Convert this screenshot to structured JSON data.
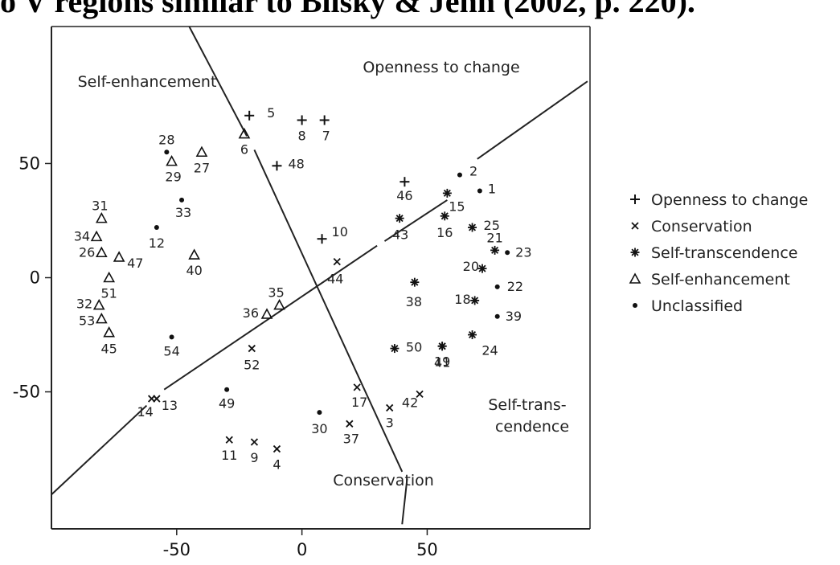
{
  "caption": "o V regions similar to Bilsky & Jehn (2002, p. 220).",
  "chart_data": {
    "type": "scatter",
    "title": "",
    "xlabel": "",
    "ylabel": "",
    "xlim": [
      -100,
      115
    ],
    "ylim": [
      -110,
      110
    ],
    "x_ticks": [
      -50,
      0,
      50
    ],
    "y_ticks": [
      50,
      0,
      -50
    ],
    "grid": false,
    "legend_position": "right",
    "series": [
      {
        "name": "Openness to change",
        "marker": "plus",
        "points": [
          {
            "label": "5",
            "x": -21,
            "y": 71
          },
          {
            "label": "8",
            "x": 0,
            "y": 69
          },
          {
            "label": "7",
            "x": 9,
            "y": 69
          },
          {
            "label": "48",
            "x": -10,
            "y": 49
          },
          {
            "label": "46",
            "x": 41,
            "y": 42
          },
          {
            "label": "10",
            "x": 8,
            "y": 17
          }
        ]
      },
      {
        "name": "Conservation",
        "marker": "cross",
        "points": [
          {
            "label": "44",
            "x": 14,
            "y": 7
          },
          {
            "label": "52",
            "x": -20,
            "y": -31
          },
          {
            "label": "14",
            "x": -60,
            "y": -53
          },
          {
            "label": "13",
            "x": -58,
            "y": -53
          },
          {
            "label": "17",
            "x": 22,
            "y": -48
          },
          {
            "label": "42",
            "x": 47,
            "y": -51
          },
          {
            "label": "3",
            "x": 35,
            "y": -57
          },
          {
            "label": "37",
            "x": 19,
            "y": -64
          },
          {
            "label": "11",
            "x": -29,
            "y": -71
          },
          {
            "label": "9",
            "x": -19,
            "y": -72
          },
          {
            "label": "4",
            "x": -10,
            "y": -75
          }
        ]
      },
      {
        "name": "Self-transcendence",
        "marker": "asterisk",
        "points": [
          {
            "label": "15",
            "x": 58,
            "y": 37
          },
          {
            "label": "43",
            "x": 39,
            "y": 26
          },
          {
            "label": "16",
            "x": 57,
            "y": 27
          },
          {
            "label": "25",
            "x": 68,
            "y": 22
          },
          {
            "label": "21",
            "x": 77,
            "y": 12
          },
          {
            "label": "20",
            "x": 72,
            "y": 4
          },
          {
            "label": "38",
            "x": 45,
            "y": -2
          },
          {
            "label": "18",
            "x": 69,
            "y": -10
          },
          {
            "label": "24",
            "x": 68,
            "y": -25
          },
          {
            "label": "19",
            "x": 56,
            "y": -30
          },
          {
            "label": "41",
            "x": 56,
            "y": -30
          },
          {
            "label": "50",
            "x": 37,
            "y": -31
          }
        ]
      },
      {
        "name": "Self-enhancement",
        "marker": "triangle",
        "points": [
          {
            "label": "6",
            "x": -23,
            "y": 63
          },
          {
            "label": "27",
            "x": -40,
            "y": 55
          },
          {
            "label": "29",
            "x": -52,
            "y": 51
          },
          {
            "label": "31",
            "x": -80,
            "y": 26
          },
          {
            "label": "34",
            "x": -82,
            "y": 18
          },
          {
            "label": "26",
            "x": -80,
            "y": 11
          },
          {
            "label": "47",
            "x": -73,
            "y": 9
          },
          {
            "label": "40",
            "x": -43,
            "y": 10
          },
          {
            "label": "51",
            "x": -77,
            "y": 0
          },
          {
            "label": "35",
            "x": -9,
            "y": -12
          },
          {
            "label": "36",
            "x": -14,
            "y": -16
          },
          {
            "label": "32",
            "x": -81,
            "y": -12
          },
          {
            "label": "53",
            "x": -80,
            "y": -18
          },
          {
            "label": "45",
            "x": -77,
            "y": -24
          }
        ]
      },
      {
        "name": "Unclassified",
        "marker": "dot",
        "points": [
          {
            "label": "28",
            "x": -54,
            "y": 55
          },
          {
            "label": "2",
            "x": 63,
            "y": 45
          },
          {
            "label": "1",
            "x": 71,
            "y": 38
          },
          {
            "label": "33",
            "x": -48,
            "y": 34
          },
          {
            "label": "12",
            "x": -58,
            "y": 22
          },
          {
            "label": "23",
            "x": 82,
            "y": 11
          },
          {
            "label": "22",
            "x": 78,
            "y": -4
          },
          {
            "label": "39",
            "x": 78,
            "y": -17
          },
          {
            "label": "54",
            "x": -52,
            "y": -26
          },
          {
            "label": "49",
            "x": -30,
            "y": -49
          },
          {
            "label": "30",
            "x": 7,
            "y": -59
          }
        ]
      }
    ],
    "region_labels": [
      "Openness to change",
      "Self-enhancement",
      "Self-trans-",
      "cendence",
      "Conservation"
    ],
    "partition_lines": [
      [
        [
          -45,
          110
        ],
        [
          40,
          -108
        ]
      ],
      [
        [
          -100,
          -95
        ],
        [
          114,
          86
        ]
      ]
    ]
  }
}
